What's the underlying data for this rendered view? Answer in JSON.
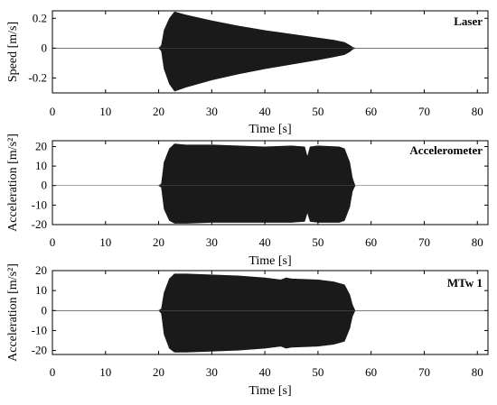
{
  "chart_data": [
    {
      "type": "line",
      "title": "Laser",
      "xlabel": "Time [s]",
      "ylabel": "Speed [m/s]",
      "xlim": [
        0,
        82
      ],
      "ylim": [
        -0.3,
        0.25
      ],
      "xticks": [
        "0",
        "10",
        "20",
        "30",
        "40",
        "50",
        "60",
        "70",
        "80"
      ],
      "yticks": [
        "0.2",
        "0",
        "-0.2"
      ],
      "ytick_values": [
        0.2,
        0,
        -0.2
      ],
      "grid": false,
      "color": "#1a1a1a",
      "envelope": {
        "t": [
          0,
          20,
          20.5,
          21,
          22,
          23,
          25,
          30,
          35,
          40,
          45,
          50,
          53,
          55,
          56,
          56.5,
          57,
          82
        ],
        "upper": [
          0,
          0,
          0.02,
          0.12,
          0.2,
          0.245,
          0.225,
          0.185,
          0.15,
          0.12,
          0.095,
          0.07,
          0.055,
          0.04,
          0.02,
          0.008,
          0,
          0
        ],
        "lower": [
          0,
          0,
          -0.02,
          -0.14,
          -0.24,
          -0.29,
          -0.265,
          -0.215,
          -0.175,
          -0.14,
          -0.11,
          -0.08,
          -0.06,
          -0.045,
          -0.025,
          -0.01,
          0,
          0
        ]
      }
    },
    {
      "type": "line",
      "title": "Accelerometer",
      "xlabel": "Time [s]",
      "ylabel": "Acceleration [m/s²]",
      "xlim": [
        0,
        82
      ],
      "ylim": [
        -20,
        23
      ],
      "xticks": [
        "0",
        "10",
        "20",
        "30",
        "40",
        "50",
        "60",
        "70",
        "80"
      ],
      "yticks": [
        "20",
        "10",
        "0",
        "-10",
        "-20"
      ],
      "ytick_values": [
        20,
        10,
        0,
        -10,
        -20
      ],
      "grid": false,
      "color": "#1a1a1a",
      "envelope": {
        "t": [
          0,
          20,
          20.5,
          21,
          22,
          23,
          25,
          30,
          35,
          40,
          45,
          47.5,
          48,
          48.5,
          50,
          54,
          55,
          56,
          56.5,
          57,
          82
        ],
        "upper": [
          0,
          0,
          1,
          12,
          19,
          21.5,
          21,
          21,
          20.5,
          20,
          20.5,
          20,
          15,
          20,
          20.5,
          20,
          19,
          12,
          4,
          0,
          0
        ],
        "lower": [
          0,
          0,
          -1,
          -12,
          -18,
          -19.5,
          -19.5,
          -19,
          -19,
          -19,
          -19,
          -18.5,
          -14,
          -18.5,
          -19,
          -19,
          -18,
          -11,
          -3,
          0,
          0
        ]
      }
    },
    {
      "type": "line",
      "title": "MTw 1",
      "xlabel": "Time [s]",
      "ylabel": "Acceleration [m/s²]",
      "xlim": [
        0,
        82
      ],
      "ylim": [
        -22,
        20
      ],
      "xticks": [
        "0",
        "10",
        "20",
        "30",
        "40",
        "50",
        "60",
        "70",
        "80"
      ],
      "yticks": [
        "20",
        "10",
        "0",
        "-10",
        "-20"
      ],
      "ytick_values": [
        20,
        10,
        0,
        -10,
        -20
      ],
      "grid": false,
      "color": "#1a1a1a",
      "envelope": {
        "t": [
          0,
          20,
          20.5,
          21,
          22,
          23,
          25,
          30,
          35,
          40,
          43,
          44,
          45,
          50,
          53,
          55,
          56,
          56.5,
          57,
          82
        ],
        "upper": [
          0,
          0,
          1,
          9,
          16,
          18.5,
          18.5,
          18,
          17.5,
          16.5,
          15.5,
          16.5,
          16,
          15.5,
          14.5,
          13,
          8,
          3,
          0,
          0
        ],
        "lower": [
          0,
          0,
          -1.5,
          -12,
          -19,
          -21,
          -21,
          -20.5,
          -20,
          -19,
          -18,
          -19,
          -18.5,
          -18,
          -17,
          -15.5,
          -9,
          -3,
          0,
          0
        ]
      }
    }
  ]
}
